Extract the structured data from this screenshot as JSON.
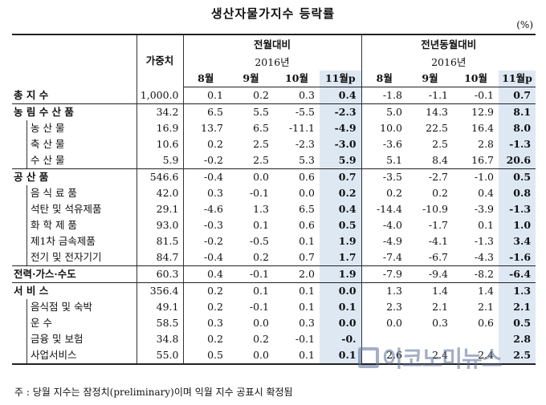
{
  "title": "생산자물가지수 등락률",
  "unit": "(%)",
  "headers": {
    "weight": "가중치",
    "mom": "전월대비",
    "yoy": "전년동월대비",
    "year": "2016년",
    "months": [
      "8월",
      "9월",
      "10월",
      "11월p"
    ]
  },
  "rows": [
    {
      "label": "총 지 수",
      "level": "main",
      "weight": "1,000.0",
      "mom": [
        "0.1",
        "0.2",
        "0.3",
        "0.4"
      ],
      "yoy": [
        "-1.8",
        "-1.1",
        "-0.1",
        "0.7"
      ]
    },
    {
      "label": "농 림 수 산 품",
      "level": "main",
      "weight": "34.2",
      "mom": [
        "6.5",
        "5.5",
        "-5.5",
        "-2.3"
      ],
      "yoy": [
        "5.0",
        "14.3",
        "12.9",
        "8.1"
      ]
    },
    {
      "label": "농 산 물",
      "level": "sub",
      "weight": "16.9",
      "mom": [
        "13.7",
        "6.5",
        "-11.1",
        "-4.9"
      ],
      "yoy": [
        "10.0",
        "22.5",
        "16.4",
        "8.0"
      ]
    },
    {
      "label": "축 산 물",
      "level": "sub",
      "weight": "10.6",
      "mom": [
        "0.2",
        "2.5",
        "-2.3",
        "-3.0"
      ],
      "yoy": [
        "-3.6",
        "2.5",
        "2.8",
        "-1.3"
      ]
    },
    {
      "label": "수 산 물",
      "level": "sub",
      "weight": "5.9",
      "mom": [
        "-0.2",
        "2.5",
        "5.3",
        "5.9"
      ],
      "yoy": [
        "5.1",
        "8.4",
        "16.7",
        "20.6"
      ]
    },
    {
      "label": "공 산 품",
      "level": "main",
      "weight": "546.6",
      "mom": [
        "-0.4",
        "0.0",
        "0.6",
        "0.7"
      ],
      "yoy": [
        "-3.5",
        "-2.7",
        "-1.0",
        "0.5"
      ]
    },
    {
      "label": "음 식 료 품",
      "level": "sub",
      "weight": "42.0",
      "mom": [
        "0.3",
        "-0.1",
        "0.0",
        "0.2"
      ],
      "yoy": [
        "0.2",
        "0.2",
        "0.4",
        "0.8"
      ]
    },
    {
      "label": "석탄 및 석유제품",
      "level": "sub",
      "weight": "29.1",
      "mom": [
        "-4.6",
        "1.3",
        "6.5",
        "0.4"
      ],
      "yoy": [
        "-14.4",
        "-10.9",
        "-3.9",
        "-1.3"
      ]
    },
    {
      "label": "화 학 제 품",
      "level": "sub",
      "weight": "93.0",
      "mom": [
        "-0.3",
        "0.1",
        "0.6",
        "0.5"
      ],
      "yoy": [
        "-4.0",
        "-1.7",
        "0.1",
        "1.0"
      ]
    },
    {
      "label": "제1차 금속제품",
      "level": "sub",
      "weight": "81.5",
      "mom": [
        "-0.2",
        "-0.5",
        "0.1",
        "1.9"
      ],
      "yoy": [
        "-4.9",
        "-4.1",
        "-1.3",
        "3.4"
      ]
    },
    {
      "label": "전기 및 전자기기",
      "level": "sub",
      "weight": "84.7",
      "mom": [
        "-0.4",
        "0.2",
        "0.7",
        "1.7"
      ],
      "yoy": [
        "-7.4",
        "-6.7",
        "-4.3",
        "-1.6"
      ]
    },
    {
      "label": "전력·가스·수도",
      "level": "main",
      "weight": "60.3",
      "mom": [
        "0.4",
        "-0.1",
        "2.0",
        "1.9"
      ],
      "yoy": [
        "-7.9",
        "-9.4",
        "-8.2",
        "-6.4"
      ]
    },
    {
      "label": "서 비 스",
      "level": "main",
      "weight": "356.4",
      "mom": [
        "0.2",
        "0.1",
        "0.1",
        "0.0"
      ],
      "yoy": [
        "1.3",
        "1.4",
        "1.4",
        "1.3"
      ]
    },
    {
      "label": "음식점 및 숙박",
      "level": "sub",
      "weight": "49.1",
      "mom": [
        "0.2",
        "-0.1",
        "0.1",
        "0.1"
      ],
      "yoy": [
        "2.3",
        "2.1",
        "2.1",
        "2.1"
      ]
    },
    {
      "label": "운 수",
      "level": "sub",
      "weight": "58.5",
      "mom": [
        "0.3",
        "0.0",
        "0.3",
        "0.0"
      ],
      "yoy": [
        "0.0",
        "0.3",
        "0.6",
        "0.5"
      ]
    },
    {
      "label": "금융 및 보험",
      "level": "sub",
      "weight": "34.8",
      "mom": [
        "0.2",
        "0.2",
        "-0.1",
        "-0."
      ],
      "yoy": [
        "",
        "",
        "",
        "2.8"
      ]
    },
    {
      "label": "사업서비스",
      "level": "sub",
      "weight": "55.0",
      "mom": [
        "0.5",
        "0.0",
        "0.1",
        "0.1"
      ],
      "yoy": [
        "2.6",
        "2.4",
        "2.4",
        "2.5"
      ]
    }
  ],
  "note": "주 : 당월 지수는 잠정치(preliminary)이며 익월 지수 공표시 확정됨",
  "watermark": "이코노미뉴스",
  "colors": {
    "highlight": "#dde8f3"
  }
}
